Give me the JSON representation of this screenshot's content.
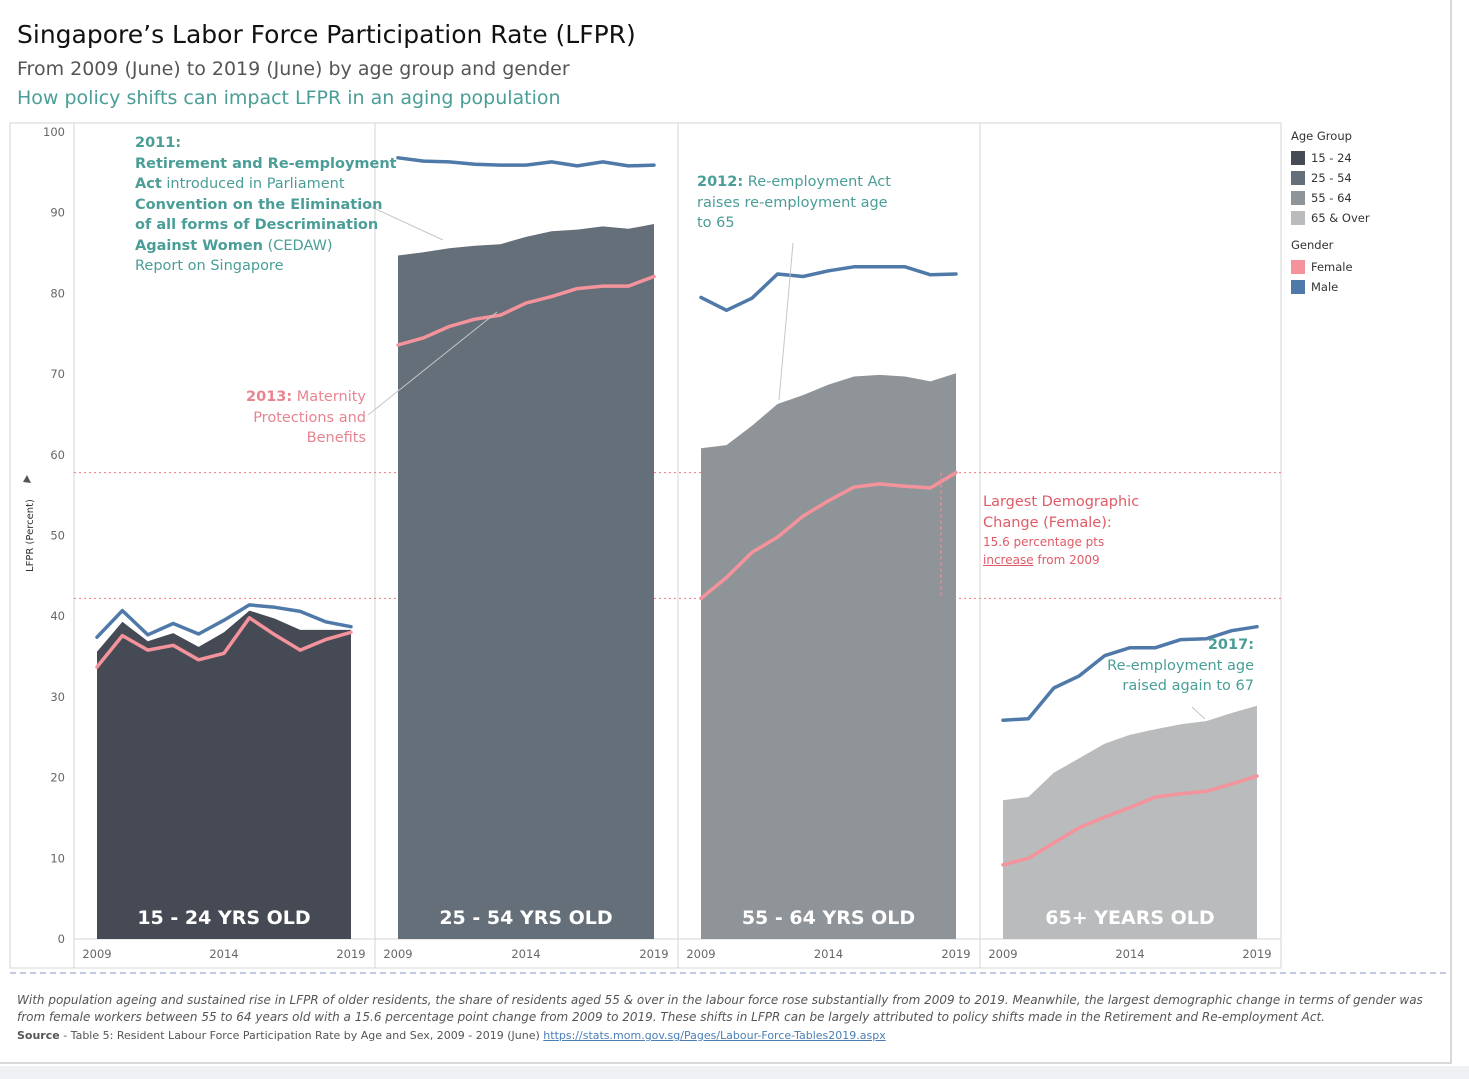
{
  "title": "Singapore’s Labor Force Participation Rate (LFPR)",
  "subtitle": "From 2009 (June) to 2019 (June) by age group and gender",
  "subtitle2": "How policy shifts can impact LFPR in an aging population",
  "legend": {
    "age_title": "Age Group",
    "age_items": [
      {
        "label": "15 - 24",
        "color": "#454a55"
      },
      {
        "label": "25 - 54",
        "color": "#646f79"
      },
      {
        "label": "55 - 64",
        "color": "#8e9498"
      },
      {
        "label": "65 & Over",
        "color": "#b9bbbc"
      }
    ],
    "gender_title": "Gender",
    "gender_items": [
      {
        "label": "Female",
        "color": "#f4939c"
      },
      {
        "label": "Male",
        "color": "#4f79a8"
      }
    ]
  },
  "annotations": {
    "a2011": {
      "year": "2011:",
      "line1": "Retirement and Re-employment",
      "line2_bold": "Act",
      "line2_rest": " introduced in Parliament",
      "line3": "Convention on the Elimination",
      "line4": "of all forms of Descrimination",
      "line5_bold": "Against Women",
      "line5_rest": " (CEDAW)",
      "line6": "Report on Singapore"
    },
    "a2013": {
      "year": "2013:",
      "line1_rest": " Maternity",
      "line2": "Protections and",
      "line3": "Benefits"
    },
    "a2012": {
      "year": "2012:",
      "line1_rest": " Re-employment Act",
      "line2": "raises re-employment age",
      "line3": "to 65"
    },
    "a2017": {
      "year": "2017:",
      "line2": "Re-employment age",
      "line3": "raised again to 67"
    },
    "demographic": {
      "line1": "Largest Demographic",
      "line2": "Change (Female):",
      "line3": "15.6 percentage pts",
      "line4_u": "increase",
      "line4_rest": " from 2009"
    }
  },
  "footnote": "With population ageing and sustained rise in LFPR of older residents, the share of residents aged 55 & over in the labour force rose substantially from 2009 to 2019. Meanwhile, the largest demographic change in terms of gender was from female workers between 55 to 64 years old with a 15.6 percentage point change from 2009 to 2019. These shifts in LFPR can be largely attributed to policy shifts made in the Retirement and Re-employment Act.",
  "source": {
    "label": "Source",
    "text": " - Table 5: Resident Labour Force Participation Rate by Age and Sex, 2009 - 2019 (June) ",
    "link": "https://stats.mom.gov.sg/Pages/Labour-Force-Tables2019.aspx"
  },
  "chart_data": {
    "type": "area",
    "ylabel": "LFPR (Percent)",
    "ylim": [
      0,
      100
    ],
    "yticks": [
      0,
      10,
      20,
      30,
      40,
      50,
      60,
      70,
      80,
      90,
      100
    ],
    "xticks": [
      "2009",
      "2014",
      "2019"
    ],
    "x": [
      2009,
      2010,
      2011,
      2012,
      2013,
      2014,
      2015,
      2016,
      2017,
      2018,
      2019
    ],
    "reference_lines": [
      42.2,
      57.8
    ],
    "panels": [
      {
        "label": "15 - 24 YRS OLD",
        "color": "#454a55",
        "total": [
          35.6,
          39.3,
          36.9,
          37.9,
          36.2,
          38.0,
          40.7,
          39.7,
          38.3,
          38.3,
          38.3
        ],
        "female": [
          33.7,
          37.6,
          35.8,
          36.4,
          34.6,
          35.4,
          39.8,
          37.7,
          35.8,
          37.1,
          38.0
        ],
        "male": [
          37.4,
          40.7,
          37.7,
          39.1,
          37.8,
          39.5,
          41.4,
          41.1,
          40.6,
          39.3,
          38.7
        ]
      },
      {
        "label": "25 - 54 YRS OLD",
        "color": "#646f79",
        "total": [
          84.7,
          85.1,
          85.6,
          85.9,
          86.1,
          87.0,
          87.7,
          87.9,
          88.3,
          88.0,
          88.6
        ],
        "female": [
          73.6,
          74.5,
          75.9,
          76.8,
          77.3,
          78.8,
          79.6,
          80.6,
          80.9,
          80.9,
          82.1
        ],
        "male": [
          96.8,
          96.4,
          96.3,
          96.0,
          95.9,
          95.9,
          96.3,
          95.8,
          96.3,
          95.8,
          95.9
        ]
      },
      {
        "label": "55 - 64 YRS OLD",
        "color": "#8e9498",
        "total": [
          60.8,
          61.2,
          63.6,
          66.3,
          67.4,
          68.7,
          69.7,
          69.9,
          69.7,
          69.1,
          70.1
        ],
        "female": [
          42.2,
          44.8,
          47.9,
          49.8,
          52.4,
          54.3,
          56.0,
          56.4,
          56.1,
          55.9,
          57.8
        ],
        "male": [
          79.5,
          77.9,
          79.4,
          82.4,
          82.1,
          82.8,
          83.3,
          83.3,
          83.3,
          82.3,
          82.4
        ]
      },
      {
        "label": "65+ YEARS OLD",
        "color": "#b9bbbc",
        "total": [
          17.2,
          17.6,
          20.6,
          22.4,
          24.2,
          25.3,
          26.0,
          26.6,
          27.0,
          28.0,
          28.9
        ],
        "female": [
          9.2,
          10.0,
          11.9,
          13.8,
          15.1,
          16.3,
          17.6,
          18.0,
          18.3,
          19.2,
          20.2
        ],
        "male": [
          27.1,
          27.3,
          31.1,
          32.6,
          35.1,
          36.1,
          36.1,
          37.1,
          37.2,
          38.2,
          38.7
        ]
      }
    ]
  }
}
